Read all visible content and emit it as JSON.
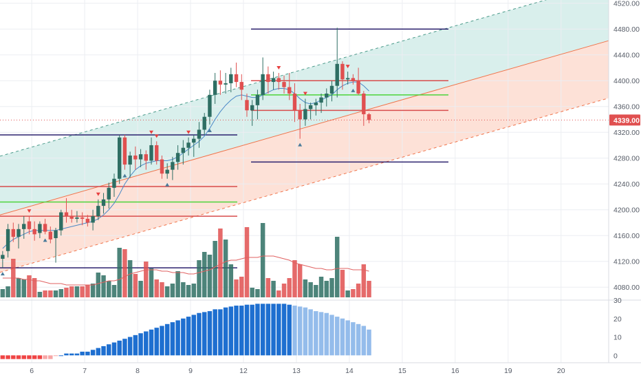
{
  "chart_data": [
    {
      "type": "candlestick",
      "title": "",
      "xlabel": "",
      "ylabel": "",
      "ylim": [
        4060,
        4525
      ],
      "y_ticks": [
        "4080.00",
        "4120.00",
        "4160.00",
        "4200.00",
        "4240.00",
        "4280.00",
        "4320.00",
        "4360.00",
        "4400.00",
        "4440.00",
        "4480.00",
        "4520.00"
      ],
      "y_tick_values": [
        4080,
        4120,
        4160,
        4200,
        4240,
        4280,
        4320,
        4360,
        4400,
        4440,
        4480,
        4520
      ],
      "x_ticks": [
        {
          "label": "6",
          "pos": 6
        },
        {
          "label": "7",
          "pos": 16
        },
        {
          "label": "8",
          "pos": 26
        },
        {
          "label": "9",
          "pos": 36
        },
        {
          "label": "12",
          "pos": 46
        },
        {
          "label": "13",
          "pos": 56
        },
        {
          "label": "14",
          "pos": 66
        },
        {
          "label": "15",
          "pos": 76
        },
        {
          "label": "16",
          "pos": 86
        },
        {
          "label": "19",
          "pos": 96
        },
        {
          "label": "20",
          "pos": 106
        }
      ],
      "x_range": [
        0,
        115
      ],
      "last_price": "4339.00",
      "last_price_value": 4339,
      "ohlc": [
        [
          4124,
          4136,
          4110,
          4130
        ],
        [
          4136,
          4178,
          4126,
          4170
        ],
        [
          4170,
          4180,
          4150,
          4158
        ],
        [
          4158,
          4178,
          4140,
          4170
        ],
        [
          4170,
          4190,
          4155,
          4178
        ],
        [
          4182,
          4190,
          4162,
          4170
        ],
        [
          4170,
          4182,
          4152,
          4162
        ],
        [
          4164,
          4182,
          4156,
          4178
        ],
        [
          4178,
          4186,
          4162,
          4166
        ],
        [
          4166,
          4174,
          4148,
          4154
        ],
        [
          4156,
          4172,
          4118,
          4168
        ],
        [
          4168,
          4200,
          4160,
          4196
        ],
        [
          4196,
          4218,
          4180,
          4190
        ],
        [
          4190,
          4200,
          4180,
          4186
        ],
        [
          4186,
          4198,
          4180,
          4188
        ],
        [
          4188,
          4196,
          4176,
          4186
        ],
        [
          4186,
          4192,
          4174,
          4180
        ],
        [
          4180,
          4200,
          4168,
          4190
        ],
        [
          4190,
          4216,
          4184,
          4206
        ],
        [
          4206,
          4226,
          4194,
          4216
        ],
        [
          4216,
          4242,
          4202,
          4234
        ],
        [
          4234,
          4256,
          4220,
          4248
        ],
        [
          4248,
          4316,
          4240,
          4312
        ],
        [
          4312,
          4316,
          4262,
          4270
        ],
        [
          4270,
          4290,
          4250,
          4284
        ],
        [
          4284,
          4298,
          4262,
          4278
        ],
        [
          4278,
          4294,
          4266,
          4286
        ],
        [
          4286,
          4292,
          4262,
          4276
        ],
        [
          4276,
          4312,
          4270,
          4300
        ],
        [
          4300,
          4306,
          4270,
          4276
        ],
        [
          4278,
          4284,
          4248,
          4256
        ],
        [
          4256,
          4272,
          4248,
          4262
        ],
        [
          4262,
          4282,
          4246,
          4274
        ],
        [
          4274,
          4300,
          4262,
          4288
        ],
        [
          4288,
          4308,
          4270,
          4296
        ],
        [
          4296,
          4312,
          4284,
          4304
        ],
        [
          4304,
          4316,
          4282,
          4310
        ],
        [
          4310,
          4336,
          4296,
          4324
        ],
        [
          4324,
          4350,
          4316,
          4344
        ],
        [
          4344,
          4386,
          4332,
          4378
        ],
        [
          4378,
          4412,
          4364,
          4400
        ],
        [
          4400,
          4416,
          4378,
          4394
        ],
        [
          4394,
          4412,
          4380,
          4396
        ],
        [
          4396,
          4420,
          4382,
          4410
        ],
        [
          4410,
          4428,
          4390,
          4398
        ],
        [
          4398,
          4410,
          4370,
          4386
        ],
        [
          4370,
          4380,
          4344,
          4354
        ],
        [
          4354,
          4370,
          4330,
          4362
        ],
        [
          4362,
          4386,
          4340,
          4378
        ],
        [
          4378,
          4436,
          4370,
          4410
        ],
        [
          4410,
          4422,
          4380,
          4398
        ],
        [
          4398,
          4414,
          4386,
          4404
        ],
        [
          4404,
          4412,
          4386,
          4398
        ],
        [
          4398,
          4408,
          4380,
          4390
        ],
        [
          4390,
          4412,
          4370,
          4380
        ],
        [
          4380,
          4396,
          4336,
          4354
        ],
        [
          4354,
          4364,
          4310,
          4340
        ],
        [
          4340,
          4372,
          4330,
          4356
        ],
        [
          4356,
          4366,
          4340,
          4362
        ],
        [
          4362,
          4372,
          4346,
          4366
        ],
        [
          4366,
          4380,
          4350,
          4374
        ],
        [
          4374,
          4388,
          4360,
          4380
        ],
        [
          4380,
          4400,
          4368,
          4392
        ],
        [
          4392,
          4482,
          4374,
          4426
        ],
        [
          4426,
          4430,
          4386,
          4402
        ],
        [
          4402,
          4414,
          4394,
          4404
        ],
        [
          4404,
          4410,
          4394,
          4400
        ],
        [
          4400,
          4420,
          4378,
          4380
        ],
        [
          4380,
          4384,
          4330,
          4348
        ],
        [
          4348,
          4350,
          4334,
          4339
        ]
      ],
      "volume": [
        6,
        8,
        28,
        14,
        13,
        16,
        14,
        4,
        5,
        5,
        5,
        6,
        7,
        8,
        8,
        8,
        9,
        10,
        18,
        16,
        12,
        9,
        36,
        35,
        27,
        17,
        12,
        26,
        21,
        13,
        11,
        8,
        10,
        19,
        11,
        9,
        10,
        27,
        33,
        31,
        41,
        50,
        42,
        24,
        13,
        15,
        51,
        7,
        6,
        54,
        14,
        12,
        5,
        10,
        14,
        27,
        24,
        13,
        11,
        9,
        15,
        12,
        14,
        44,
        20,
        5,
        6,
        10,
        24,
        12
      ],
      "ma_line": [
        4140,
        4148,
        4154,
        4158,
        4162,
        4166,
        4168,
        4168,
        4168,
        4168,
        4168,
        4170,
        4172,
        4174,
        4176,
        4178,
        4180,
        4182,
        4186,
        4192,
        4200,
        4210,
        4224,
        4240,
        4252,
        4262,
        4268,
        4272,
        4274,
        4276,
        4276,
        4276,
        4278,
        4282,
        4288,
        4294,
        4300,
        4306,
        4314,
        4326,
        4340,
        4352,
        4362,
        4370,
        4376,
        4378,
        4376,
        4374,
        4374,
        4378,
        4382,
        4386,
        4388,
        4388,
        4386,
        4380,
        4372,
        4366,
        4364,
        4366,
        4370,
        4374,
        4378,
        4386,
        4392,
        4396,
        4398,
        4398,
        4392,
        4384
      ],
      "volume_ma": [
        14,
        14,
        14,
        14,
        13,
        13,
        12,
        12,
        11,
        10,
        10,
        10,
        9,
        9,
        9,
        9,
        9,
        9,
        10,
        11,
        12,
        12,
        13,
        15,
        17,
        18,
        19,
        20,
        20,
        20,
        19,
        19,
        18,
        18,
        18,
        17,
        17,
        18,
        19,
        20,
        22,
        24,
        26,
        27,
        27,
        28,
        29,
        29,
        29,
        30,
        30,
        30,
        29,
        28,
        27,
        25,
        24,
        23,
        22,
        21,
        21,
        20,
        20,
        21,
        21,
        21,
        20,
        20,
        20,
        19
      ],
      "histogram": [
        -2,
        -2,
        -2,
        -2,
        -2,
        -2,
        -2,
        -2,
        -2,
        -2,
        0,
        0,
        1,
        1,
        1,
        2,
        2,
        3,
        4,
        5,
        6,
        7,
        8,
        9,
        10,
        11,
        12,
        13,
        14,
        15,
        16,
        17,
        18,
        19,
        20,
        21,
        22,
        23,
        23.5,
        24,
        25,
        25,
        26,
        26.5,
        27,
        27,
        27.5,
        27.5,
        28,
        28,
        28,
        28,
        28,
        28,
        27.5,
        27,
        26.5,
        26,
        25,
        24,
        23.5,
        23,
        22,
        21,
        20,
        19,
        18,
        17,
        16,
        14
      ],
      "histogram_light_from": 55,
      "histogram_ylim": [
        -4,
        30
      ],
      "histogram_y_ticks": [
        "30",
        "20",
        "10",
        "0"
      ],
      "histogram_y_tick_values": [
        30,
        20,
        10,
        0
      ],
      "colors": {
        "up": "#2e6e63",
        "down": "#e05050",
        "hist_neg": "#ef4444",
        "hist_neg_light": "#f7a6a6",
        "hist_pos": "#1e6fd0",
        "hist_pos_light": "#94bceb",
        "channel_upper": "#d9efec",
        "channel_lower": "#fde1d7",
        "regression": "#f0734a",
        "ma": "#4a88c7",
        "level_navy": "#2b216e",
        "level_red": "#d84c4c",
        "level_green": "#4cd43a"
      }
    }
  ]
}
